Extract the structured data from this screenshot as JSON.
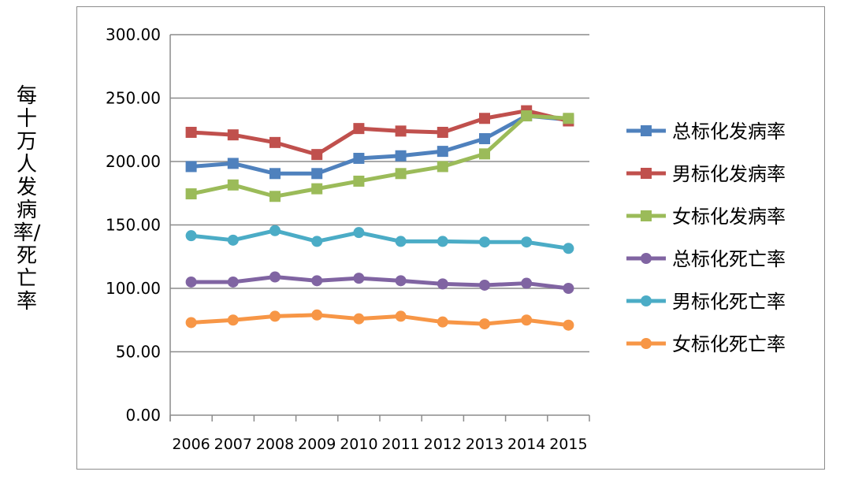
{
  "chart_data": {
    "type": "line",
    "title": "",
    "xlabel": "",
    "ylabel": "每十万人发病率/死亡率",
    "categories": [
      "2006",
      "2007",
      "2008",
      "2009",
      "2010",
      "2011",
      "2012",
      "2013",
      "2014",
      "2015"
    ],
    "ylim": [
      0,
      300
    ],
    "yticks": [
      "0.00",
      "50.00",
      "100.00",
      "150.00",
      "200.00",
      "250.00",
      "300.00"
    ],
    "grid": true,
    "legend_position": "right",
    "series": [
      {
        "name": "总标化发病率",
        "color": "#4f81bd",
        "marker": "square",
        "values": [
          196,
          198.5,
          190.5,
          190.5,
          202.5,
          204.5,
          208,
          218,
          236,
          233
        ]
      },
      {
        "name": "男标化发病率",
        "color": "#c0504d",
        "marker": "square",
        "values": [
          223,
          221,
          215,
          205.5,
          226,
          224,
          223,
          234,
          240,
          232
        ]
      },
      {
        "name": "女标化发病率",
        "color": "#9bbb59",
        "marker": "square",
        "values": [
          174.5,
          181.5,
          172.5,
          178.5,
          184.5,
          190.5,
          196,
          206,
          236,
          234
        ]
      },
      {
        "name": "总标化死亡率",
        "color": "#8064a2",
        "marker": "circle",
        "values": [
          105,
          105,
          109,
          106,
          108,
          106,
          103.5,
          102.5,
          104,
          100
        ]
      },
      {
        "name": "男标化死亡率",
        "color": "#4bacc6",
        "marker": "circle",
        "values": [
          141.5,
          138,
          145.5,
          137,
          144,
          137,
          137,
          136.5,
          136.5,
          131.5
        ]
      },
      {
        "name": "女标化死亡率",
        "color": "#f79646",
        "marker": "circle",
        "values": [
          73,
          75,
          78,
          79,
          76,
          78,
          73.5,
          72,
          75,
          71
        ]
      }
    ]
  }
}
